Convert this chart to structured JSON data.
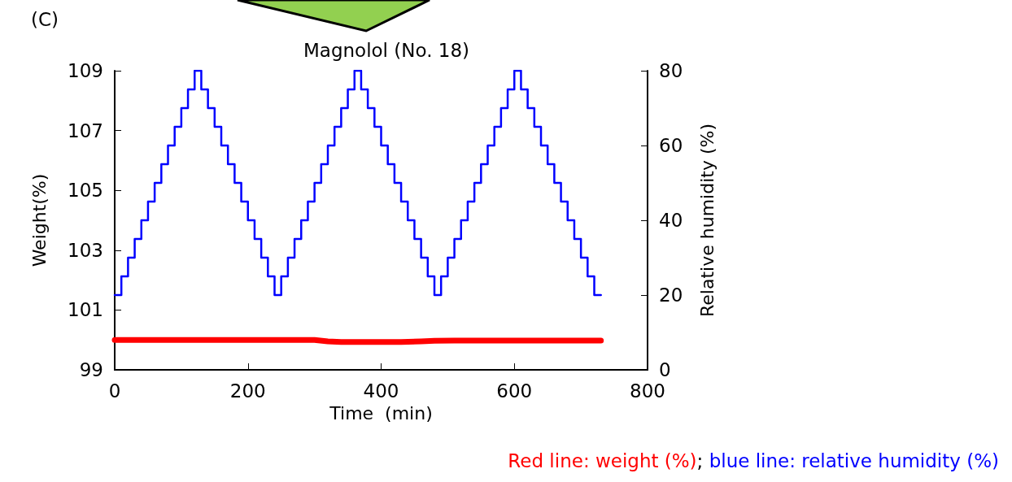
{
  "chart_data": {
    "type": "line",
    "title": "Magnolol (No. 18)",
    "xlabel": "Time  (min)",
    "ylabel": "Weight(%)",
    "y2label": "Relative humidity (%)",
    "annotations": [
      "(C)",
      "Red line: weight (%)",
      ";",
      "blue line: relative humidity (%)"
    ],
    "xlim": [
      0,
      800
    ],
    "xticks": [
      0,
      200,
      400,
      600,
      800
    ],
    "ylim": [
      99,
      109
    ],
    "yticks": [
      99,
      101,
      103,
      105,
      107,
      109
    ],
    "y2lim": [
      0,
      80
    ],
    "y2ticks": [
      0,
      20,
      40,
      60,
      80
    ],
    "grid": false,
    "marker": "none",
    "line_style": "solid",
    "series": [
      {
        "color": "#ff0000",
        "x": [
          0,
          30,
          60,
          90,
          120,
          150,
          180,
          210,
          240,
          270,
          300,
          320,
          340,
          370,
          400,
          430,
          460,
          480,
          510,
          540,
          570,
          600,
          630,
          660,
          690,
          720,
          730
        ],
        "values": [
          100.0,
          100.0,
          100.0,
          100.0,
          100.0,
          100.0,
          100.0,
          100.0,
          100.0,
          100.0,
          100.0,
          99.95,
          99.93,
          99.93,
          99.93,
          99.93,
          99.95,
          99.97,
          99.98,
          99.98,
          99.98,
          99.98,
          99.98,
          99.98,
          99.98,
          99.98,
          99.98
        ]
      },
      {
        "type": "step",
        "color": "#0000ff",
        "axis": "y2",
        "x": [
          0,
          10,
          20,
          30,
          40,
          50,
          60,
          70,
          80,
          90,
          100,
          110,
          120,
          130,
          140,
          150,
          160,
          170,
          180,
          190,
          200,
          210,
          220,
          230,
          240,
          250,
          260,
          270,
          280,
          290,
          300,
          310,
          320,
          330,
          340,
          350,
          360,
          370,
          380,
          390,
          400,
          410,
          420,
          430,
          440,
          450,
          460,
          470,
          480,
          490,
          500,
          510,
          520,
          530,
          540,
          550,
          560,
          570,
          580,
          590,
          600,
          610,
          620,
          630,
          640,
          650,
          660,
          670,
          680,
          690,
          700,
          710,
          720,
          730
        ],
        "values": [
          20,
          25,
          30,
          35,
          40,
          45,
          50,
          55,
          60,
          65,
          70,
          75,
          80,
          75,
          70,
          65,
          60,
          55,
          50,
          45,
          40,
          35,
          30,
          25,
          20,
          25,
          30,
          35,
          40,
          45,
          50,
          55,
          60,
          65,
          70,
          75,
          80,
          75,
          70,
          65,
          60,
          55,
          50,
          45,
          40,
          35,
          30,
          25,
          20,
          25,
          30,
          35,
          40,
          45,
          50,
          55,
          60,
          65,
          70,
          75,
          80,
          75,
          70,
          65,
          60,
          55,
          50,
          45,
          40,
          35,
          30,
          25,
          20,
          20
        ]
      }
    ]
  }
}
